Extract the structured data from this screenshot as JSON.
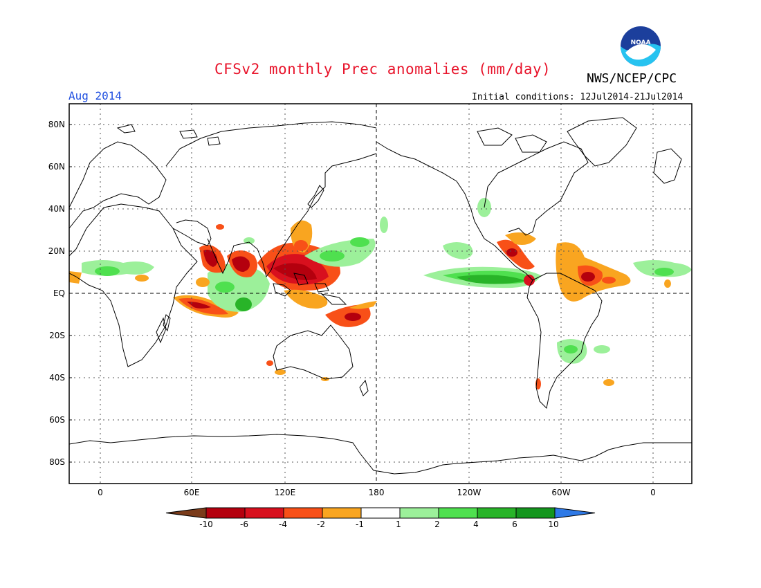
{
  "header": {
    "title": "CFSv2 monthly Prec anomalies (mm/day)",
    "agency": "NWS/NCEP/CPC",
    "month": "Aug 2014",
    "initial_conditions": "Initial conditions: 12Jul2014-21Jul2014",
    "logo_text": "NOAA"
  },
  "axes": {
    "y_labels": [
      "80N",
      "60N",
      "40N",
      "20N",
      "EQ",
      "20S",
      "40S",
      "60S",
      "80S"
    ],
    "x_labels": [
      "0",
      "60E",
      "120E",
      "180",
      "120W",
      "60W",
      "0"
    ]
  },
  "colorbar": {
    "labels": [
      "-10",
      "-6",
      "-4",
      "-2",
      "-1",
      "1",
      "2",
      "4",
      "6",
      "10"
    ],
    "colors": [
      "#7a3b1a",
      "#b4000e",
      "#d8101e",
      "#f85018",
      "#f9a520",
      "#ffffff",
      "#9cf09a",
      "#4fe04f",
      "#28b428",
      "#14961e",
      "#2e79e6"
    ]
  }
}
